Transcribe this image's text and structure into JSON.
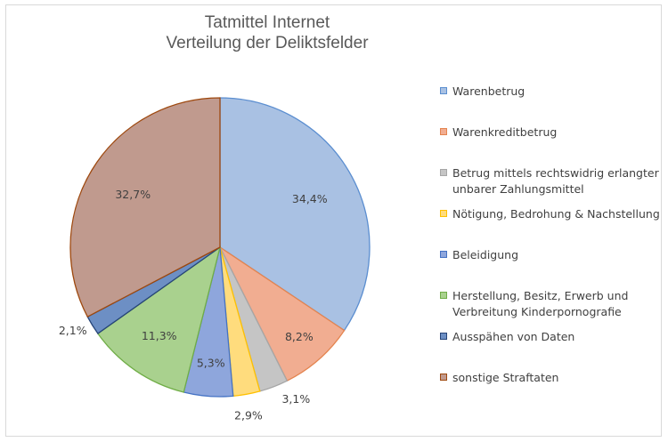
{
  "chart_data": {
    "type": "pie",
    "title_lines": [
      "Tatmittel Internet",
      "Verteilung der Deliktsfelder"
    ],
    "legend_position": "right",
    "slices": [
      {
        "name": "Warenbetrug",
        "value": 34.4,
        "label": "34,4%",
        "color": "#a9c1e3",
        "edge": "#5b8ed0"
      },
      {
        "name": "Warenkreditbetrug",
        "value": 8.2,
        "label": "8,2%",
        "color": "#f1ad91",
        "edge": "#e4844f"
      },
      {
        "name": "Betrug mittels rechtswidrig erlangter unbarer Zahlungsmittel",
        "value": 3.1,
        "label": "3,1%",
        "color": "#c5c5c5",
        "edge": "#a6a6a6"
      },
      {
        "name": "Nötigung, Bedrohung & Nachstellung",
        "value": 2.9,
        "label": "2,9%",
        "color": "#ffdc7d",
        "edge": "#ffc000"
      },
      {
        "name": "Beleidigung",
        "value": 5.3,
        "label": "5,3%",
        "color": "#8ea6dc",
        "edge": "#4472c4"
      },
      {
        "name": "Herstellung, Besitz, Erwerb und Verbreitung Kinderpornografie",
        "value": 11.3,
        "label": "11,3%",
        "color": "#a9d18e",
        "edge": "#70ad47"
      },
      {
        "name": "Ausspähen von Daten",
        "value": 2.1,
        "label": "2,1%",
        "color": "#6d8fc4",
        "edge": "#264478"
      },
      {
        "name": "sonstige Straftaten",
        "value": 32.7,
        "label": "32,7%",
        "color": "#c09a8e",
        "edge": "#9e480e"
      }
    ]
  }
}
